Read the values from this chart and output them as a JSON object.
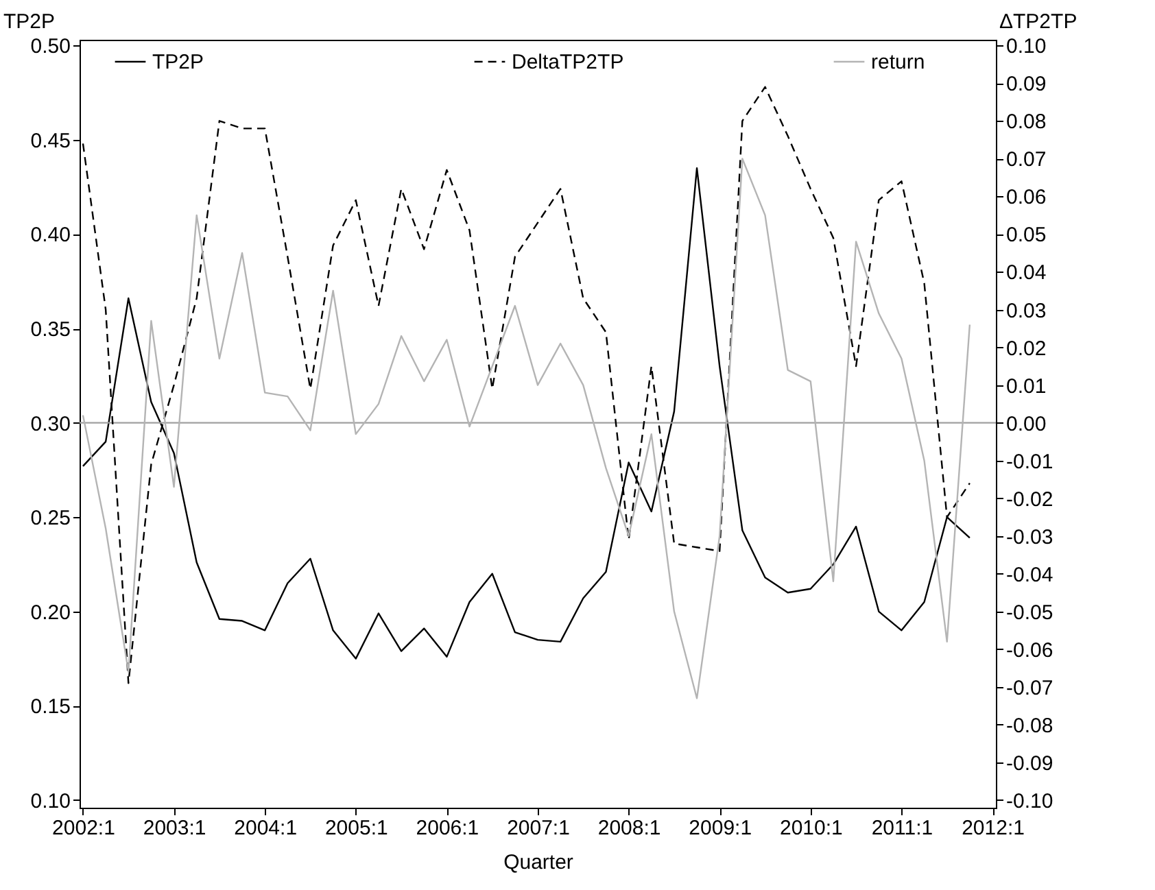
{
  "chart_data": {
    "type": "line",
    "xlabel": "Quarter",
    "ylabel": "TP2P",
    "y2label": "ΔTP2TP",
    "categories": [
      "2002:1",
      null,
      null,
      null,
      "2003:1",
      null,
      null,
      null,
      "2004:1",
      null,
      null,
      null,
      "2005:1",
      null,
      null,
      null,
      "2006:1",
      null,
      null,
      null,
      "2007:1",
      null,
      null,
      null,
      "2008:1",
      null,
      null,
      null,
      "2009:1",
      null,
      null,
      null,
      "2010:1",
      null,
      null,
      null,
      "2011:1",
      null,
      null,
      null,
      "2012:1"
    ],
    "ylim": [
      0.096,
      0.503
    ],
    "yticks": [
      {
        "value": 0.1,
        "label": "0.10"
      },
      {
        "value": 0.15,
        "label": "0.15"
      },
      {
        "value": 0.2,
        "label": "0.20"
      },
      {
        "value": 0.25,
        "label": "0.25"
      },
      {
        "value": 0.3,
        "label": "0.30"
      },
      {
        "value": 0.35,
        "label": "0.35"
      },
      {
        "value": 0.4,
        "label": "0.40"
      },
      {
        "value": 0.45,
        "label": "0.45"
      },
      {
        "value": 0.5,
        "label": "0.50"
      }
    ],
    "y2lim": [
      -0.102,
      0.1015
    ],
    "y2ticks": [
      {
        "value": -0.1,
        "label": "-0.10"
      },
      {
        "value": -0.09,
        "label": "-0.09"
      },
      {
        "value": -0.08,
        "label": "-0.08"
      },
      {
        "value": -0.07,
        "label": "-0.07"
      },
      {
        "value": -0.06,
        "label": "-0.06"
      },
      {
        "value": -0.05,
        "label": "-0.05"
      },
      {
        "value": -0.04,
        "label": "-0.04"
      },
      {
        "value": -0.03,
        "label": "-0.03"
      },
      {
        "value": -0.02,
        "label": "-0.02"
      },
      {
        "value": -0.01,
        "label": "-0.01"
      },
      {
        "value": 0,
        "label": "0.00"
      },
      {
        "value": 0.01,
        "label": "0.01"
      },
      {
        "value": 0.02,
        "label": "0.02"
      },
      {
        "value": 0.03,
        "label": "0.03"
      },
      {
        "value": 0.04,
        "label": "0.04"
      },
      {
        "value": 0.05,
        "label": "0.05"
      },
      {
        "value": 0.06,
        "label": "0.06"
      },
      {
        "value": 0.07,
        "label": "0.07"
      },
      {
        "value": 0.08,
        "label": "0.08"
      },
      {
        "value": 0.09,
        "label": "0.09"
      },
      {
        "value": 0.1,
        "label": "0.10"
      }
    ],
    "grid": false,
    "legend": "top",
    "marker": "none",
    "ref_lines": [
      {
        "axis": "y2",
        "value": 0,
        "color": "#a0a0a0"
      }
    ],
    "series": [
      {
        "name": "TP2P",
        "color": "#000000",
        "line_style": "solid",
        "values": [
          0.277,
          0.29,
          0.366,
          0.311,
          0.284,
          0.226,
          0.196,
          0.195,
          0.19,
          0.215,
          0.228,
          0.19,
          0.175,
          0.199,
          0.179,
          0.191,
          0.176,
          0.205,
          0.22,
          0.189,
          0.185,
          0.184,
          0.207,
          0.221,
          0.279,
          0.253,
          0.306,
          0.435,
          0.33,
          0.243,
          0.218,
          0.21,
          0.212,
          0.225,
          0.245,
          0.2,
          0.19,
          0.205,
          0.25,
          0.239,
          null
        ]
      },
      {
        "name": "DeltaTP2TP",
        "color": "#000000",
        "line_style": "dashed",
        "axis": "y2",
        "values": [
          0.074,
          0.03,
          -0.069,
          -0.011,
          0.01,
          0.033,
          0.08,
          0.078,
          0.078,
          0.044,
          0.009,
          0.047,
          0.059,
          0.031,
          0.062,
          0.046,
          0.067,
          0.051,
          0.009,
          0.044,
          0.053,
          0.062,
          0.033,
          0.024,
          -0.031,
          0.015,
          -0.032,
          -0.033,
          -0.034,
          0.08,
          0.089,
          0.076,
          0.062,
          0.049,
          0.015,
          0.059,
          0.064,
          0.037,
          -0.025,
          -0.016,
          null
        ]
      },
      {
        "name": "return",
        "color": "#b4b4b4",
        "line_style": "solid",
        "axis": "y2",
        "values": [
          0.002,
          -0.028,
          -0.066,
          0.027,
          -0.017,
          0.055,
          0.017,
          0.045,
          0.008,
          0.007,
          -0.002,
          0.035,
          -0.003,
          0.005,
          0.023,
          0.011,
          0.022,
          -0.001,
          0.015,
          0.031,
          0.01,
          0.021,
          0.01,
          -0.012,
          -0.03,
          -0.003,
          -0.05,
          -0.073,
          -0.03,
          0.07,
          0.055,
          0.014,
          0.011,
          -0.042,
          0.048,
          0.029,
          0.017,
          -0.01,
          -0.058,
          0.026,
          null
        ]
      }
    ]
  }
}
